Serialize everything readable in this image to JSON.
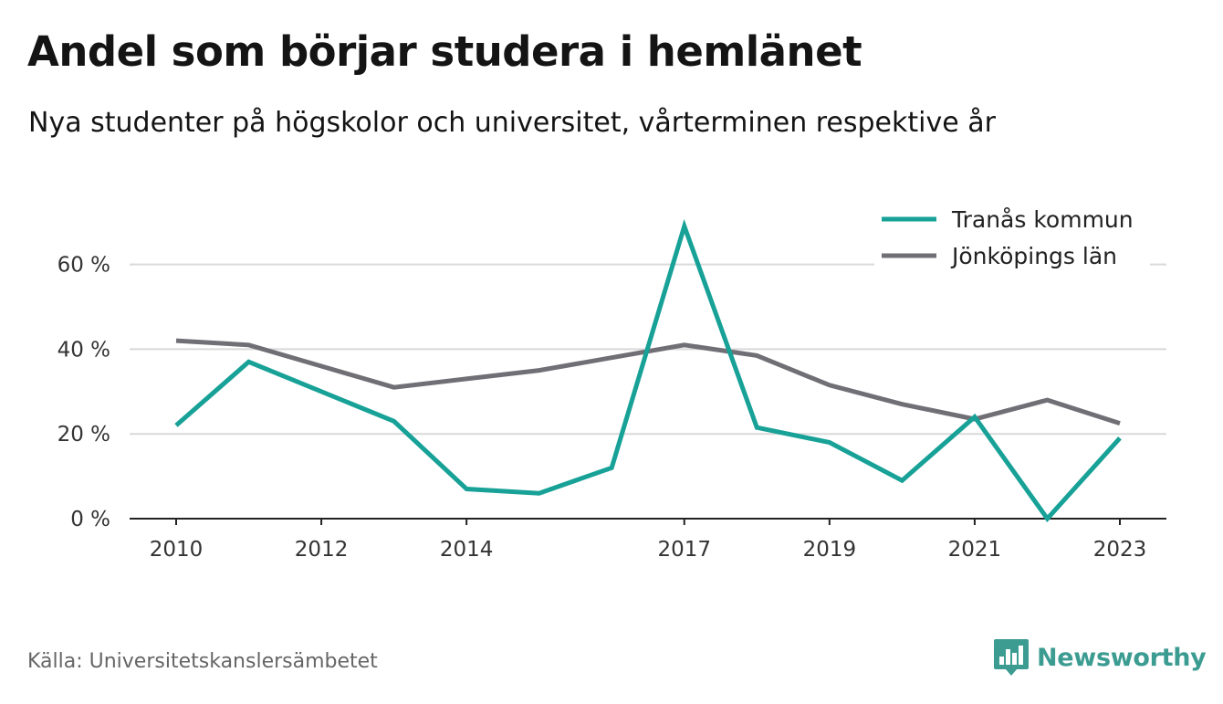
{
  "title": "Andel som börjar studera i hemlänet",
  "subtitle": "Nya studenter på högskolor och universitet, vårterminen respektive år",
  "source": "Källa: Universitetskanslersämbetet",
  "brand": "Newsworthy",
  "brand_color": "#3c9c92",
  "chart_data": {
    "type": "line",
    "title": "Andel som börjar studera i hemlänet",
    "subtitle": "Nya studenter på högskolor och universitet, vårterminen respektive år",
    "x": [
      2010,
      2011,
      2012,
      2013,
      2014,
      2015,
      2016,
      2017,
      2018,
      2019,
      2020,
      2021,
      2022,
      2023
    ],
    "x_ticks": [
      2010,
      2012,
      2014,
      2017,
      2019,
      2021,
      2023
    ],
    "y_ticks": [
      0,
      20,
      40,
      60
    ],
    "y_tick_labels": [
      "0 %",
      "20 %",
      "40 %",
      "60 %"
    ],
    "ylim": [
      0,
      70
    ],
    "xlim": [
      2010,
      2023
    ],
    "grid": "horizontal",
    "legend_position": "top-right",
    "series": [
      {
        "name": "Tranås kommun",
        "color": "#17a197",
        "values": [
          22,
          37,
          30,
          23,
          7,
          6,
          12,
          69,
          21.5,
          18,
          9,
          24,
          0,
          19
        ]
      },
      {
        "name": "Jönköpings län",
        "color": "#6f6f75",
        "values": [
          42,
          41,
          36,
          31,
          33,
          35,
          38,
          41,
          38.5,
          31.5,
          27,
          23.5,
          28,
          22.5
        ]
      }
    ]
  }
}
